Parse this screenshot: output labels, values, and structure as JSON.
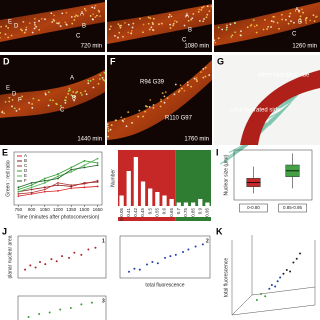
{
  "micrographs": [
    {
      "time": "720 min",
      "markers": [
        "E",
        "D",
        "A",
        "B",
        "C"
      ]
    },
    {
      "time": "1080 min",
      "markers": [
        "A",
        "B",
        "C"
      ]
    },
    {
      "time": "1260 min",
      "markers": [
        "A",
        "B",
        "C"
      ]
    },
    {
      "letter": "D",
      "time": "1440 min",
      "markers": [
        "E",
        "D",
        "F",
        "A",
        "B",
        "C"
      ]
    },
    {
      "letter": "F",
      "time": "1760 min",
      "markers": [
        "R94 G39",
        "R110 G97"
      ]
    },
    {
      "letter": "G",
      "markers": [
        "More hydrated side",
        "Less hydrated side"
      ]
    }
  ],
  "charts": [
    {
      "letter": "E",
      "type": "line",
      "ylabel": "Green : red ratio",
      "xlabel": "Time (minutes after photoconversion)",
      "x": [
        750,
        900,
        1050,
        1200,
        1350,
        1500,
        1650
      ],
      "xticks": [
        750,
        900,
        1050,
        1200,
        1350,
        1500,
        1650
      ],
      "xlim": [
        700,
        1700
      ],
      "ylim": [
        0,
        1.2
      ],
      "series": [
        {
          "name": "A",
          "color": "#d62020",
          "values": [
            0.2,
            0.25,
            0.3,
            0.32,
            0.38,
            0.4,
            0.42
          ]
        },
        {
          "name": "B",
          "color": "#8b1a1a",
          "values": [
            0.3,
            0.35,
            0.4,
            0.45,
            0.42,
            0.5,
            0.52
          ]
        },
        {
          "name": "C",
          "color": "#b03030",
          "values": [
            0.25,
            0.28,
            0.35,
            0.5,
            0.45,
            0.48,
            0.55
          ]
        },
        {
          "name": "D",
          "color": "#2ca02c",
          "values": [
            0.35,
            0.45,
            0.6,
            0.7,
            0.85,
            1.0,
            0.95
          ]
        },
        {
          "name": "E",
          "color": "#4caf50",
          "values": [
            0.3,
            0.4,
            0.5,
            0.65,
            0.75,
            0.9,
            1.05
          ]
        },
        {
          "name": "F",
          "color": "#1b5e20",
          "values": [
            0.4,
            0.5,
            0.55,
            0.6,
            0.8,
            0.85,
            0.9
          ]
        }
      ]
    },
    {
      "letter": "H",
      "type": "bar",
      "ylabel": "Number",
      "categories": [
        "0-0.05",
        "0.41",
        "0.42",
        "0.45",
        "0.5",
        "0.55",
        "0.6",
        "0.65",
        "0.7",
        "0.75",
        "0.85",
        "0.9",
        "0.95"
      ],
      "values": [
        3,
        10,
        14,
        7,
        5,
        4,
        3,
        2,
        1,
        1,
        1,
        2,
        1
      ],
      "ylim": [
        0,
        16
      ],
      "color": "#ffffff",
      "split": [
        "#c62828",
        "#2e7d32"
      ]
    },
    {
      "letter": "I",
      "type": "box",
      "ylabel": "Nuclear size (μm²)",
      "ylim": [
        0,
        300
      ],
      "categories": [
        "0-0.80",
        "0.85-0.95"
      ],
      "boxes": [
        {
          "color": "#c62828",
          "values": [
            40,
            80,
            105,
            130,
            200
          ]
        },
        {
          "color": "#43a047",
          "values": [
            70,
            140,
            175,
            210,
            280
          ]
        }
      ]
    },
    {
      "letter": "J",
      "type": "scatter",
      "ylabel": "planar nuclear area",
      "xlabel": "total fluorescence",
      "panels": [
        {
          "number": "1",
          "color": "#b22222",
          "xlim": [
            0,
            100
          ],
          "ylim": [
            0,
            100
          ],
          "x": [
            8,
            14,
            20,
            25,
            31,
            38,
            44,
            50,
            58,
            64,
            72,
            80,
            88
          ],
          "y": [
            20,
            30,
            25,
            38,
            33,
            45,
            40,
            52,
            48,
            60,
            55,
            68,
            72
          ]
        },
        {
          "number": "2",
          "color": "#1f3fa8",
          "xlim": [
            0,
            100
          ],
          "ylim": [
            0,
            100
          ],
          "x": [
            10,
            16,
            22,
            30,
            36,
            42,
            50,
            56,
            62,
            70,
            76,
            84,
            92
          ],
          "y": [
            15,
            22,
            20,
            32,
            38,
            35,
            48,
            52,
            55,
            62,
            68,
            75,
            80
          ]
        },
        {
          "number": "3",
          "color": "#3a9a3a",
          "xlim": [
            0,
            100
          ],
          "ylim": [
            0,
            100
          ],
          "x": [
            12,
            24,
            36,
            48,
            60,
            72,
            84
          ],
          "y": [
            30,
            40,
            45,
            55,
            60,
            72,
            78
          ]
        }
      ]
    },
    {
      "letter": "K",
      "type": "scatter3d",
      "zlabel": "total fluorescence",
      "xlim": [
        0,
        100
      ],
      "ylim": [
        0,
        100
      ],
      "x": [
        30,
        35,
        40,
        45,
        48,
        52,
        55,
        58,
        62,
        66,
        70,
        74,
        78,
        82
      ],
      "y": [
        20,
        28,
        25,
        35,
        40,
        38,
        45,
        50,
        55,
        60,
        58,
        70,
        75,
        82
      ],
      "colors": [
        "#3a9a3a",
        "#3a9a3a",
        "#3a9a3a",
        "#1f3fa8",
        "#1f3fa8",
        "#1f3fa8",
        "#1f3fa8",
        "#1f3fa8",
        "#222222",
        "#222222",
        "#222222",
        "#222222",
        "#222222",
        "#222222"
      ]
    }
  ]
}
